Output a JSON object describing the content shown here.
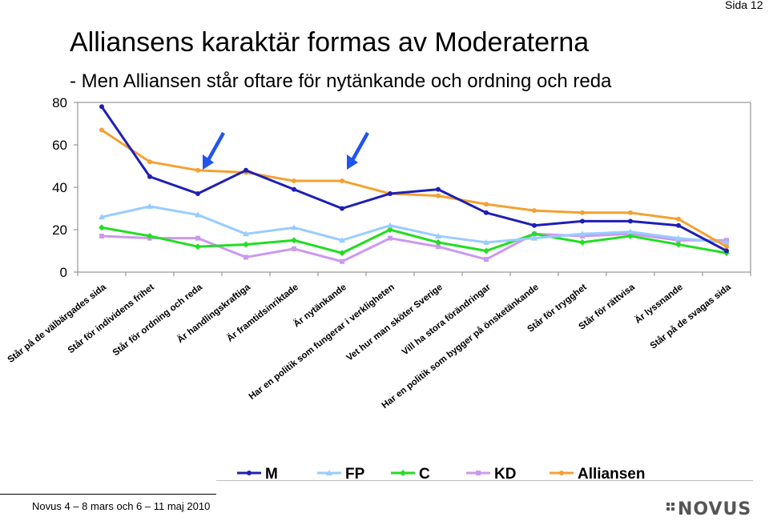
{
  "page": {
    "page_number": "Sida 12",
    "title": "Alliansens karaktär formas av Moderaterna",
    "subtitle": "- Men Alliansen står oftare för nytänkande och ordning och reda",
    "footer": "Novus 4 – 8 mars och 6 – 11 maj 2010",
    "logo": "NOVUS",
    "logo_icon": "novus-logo-icon"
  },
  "chart_data": {
    "type": "line",
    "title": "",
    "xlabel": "",
    "ylabel": "",
    "ylim": [
      0,
      80
    ],
    "yticks": [
      0,
      20,
      40,
      60,
      80
    ],
    "grid": false,
    "legend_position": "bottom",
    "categories": [
      "Står på de välbärgades sida",
      "Står för individens frihet",
      "Står för ordning och reda",
      "Är handlingskraftiga",
      "Är framtidsinriktade",
      "Är nytänkande",
      "Har en politik som fungerar i verkligheten",
      "Vet hur man sköter Sverige",
      "Vill ha stora förändringar",
      "Har en politik som bygger på önsketänkande",
      "Står för trygghet",
      "Står för rättvisa",
      "Är lyssnande",
      "Står på de svagas sida"
    ],
    "series": [
      {
        "name": "M",
        "color": "#1f1fb5",
        "marker": "circle",
        "values": [
          78,
          45,
          37,
          48,
          39,
          30,
          37,
          39,
          28,
          22,
          24,
          24,
          22,
          10
        ]
      },
      {
        "name": "FP",
        "color": "#99ccff",
        "marker": "triangle",
        "values": [
          26,
          31,
          27,
          18,
          21,
          15,
          22,
          17,
          14,
          16,
          18,
          19,
          16,
          14
        ]
      },
      {
        "name": "C",
        "color": "#22dd22",
        "marker": "diamond",
        "values": [
          21,
          17,
          12,
          13,
          15,
          9,
          20,
          14,
          10,
          18,
          14,
          17,
          13,
          9
        ]
      },
      {
        "name": "KD",
        "color": "#cc99ee",
        "marker": "square",
        "values": [
          17,
          16,
          16,
          7,
          11,
          5,
          16,
          12,
          6,
          18,
          17,
          18,
          15,
          15
        ]
      },
      {
        "name": "Alliansen",
        "color": "#f5a031",
        "marker": "circle",
        "values": [
          67,
          52,
          48,
          47,
          43,
          43,
          37,
          36,
          32,
          29,
          28,
          28,
          25,
          12
        ]
      }
    ],
    "annotations": [
      {
        "type": "arrow",
        "color": "#2255ee",
        "points_to": "Står för ordning och reda"
      },
      {
        "type": "arrow",
        "color": "#2255ee",
        "points_to": "Är nytänkande"
      }
    ]
  }
}
